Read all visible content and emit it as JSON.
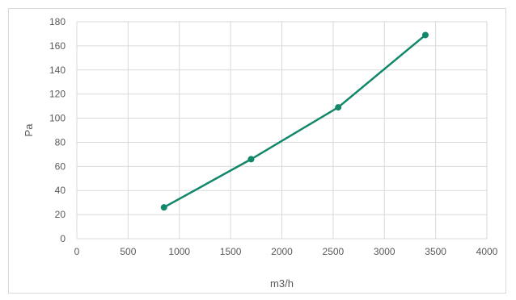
{
  "chart_data": {
    "type": "line",
    "title": "",
    "xlabel": "m3/h",
    "ylabel": "Pa",
    "xlim": [
      0,
      4000
    ],
    "ylim": [
      0,
      180
    ],
    "xticks": [
      0,
      500,
      1000,
      1500,
      2000,
      2500,
      3000,
      3500,
      4000
    ],
    "yticks": [
      0,
      20,
      40,
      60,
      80,
      100,
      120,
      140,
      160,
      180
    ],
    "grid": true,
    "legend": "none",
    "series": [
      {
        "color": "#12876a",
        "x": [
          850,
          1700,
          2550,
          3400
        ],
        "y": [
          26,
          66,
          109,
          169
        ]
      }
    ]
  }
}
